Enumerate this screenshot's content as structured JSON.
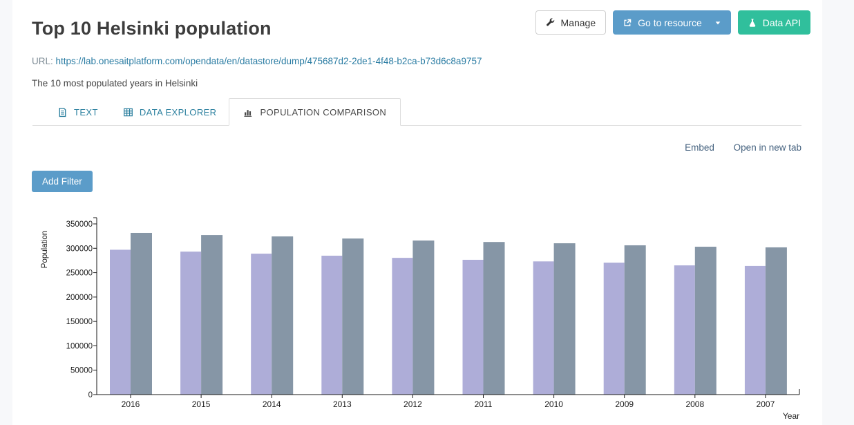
{
  "page": {
    "title": "Top 10 Helsinki population",
    "url_label": "URL:",
    "url": "https://lab.onesaitplatform.com/opendata/en/datastore/dump/475687d2-2de1-4f48-b2ca-b73d6c8a9757",
    "description": "The 10 most populated years in Helsinki"
  },
  "toolbar": {
    "manage_label": "Manage",
    "go_to_resource_label": "Go to resource",
    "data_api_label": "Data API"
  },
  "tabs": [
    {
      "label": "TEXT",
      "icon": "document-icon",
      "active": false
    },
    {
      "label": "DATA EXPLORER",
      "icon": "table-icon",
      "active": false
    },
    {
      "label": "POPULATION COMPARISON",
      "icon": "bar-chart-icon",
      "active": true
    }
  ],
  "view_links": {
    "embed": "Embed",
    "open_new_tab": "Open in new tab"
  },
  "filter": {
    "add_filter_label": "Add Filter"
  },
  "chart_data": {
    "type": "bar",
    "categories": [
      "2016",
      "2015",
      "2014",
      "2013",
      "2012",
      "2011",
      "2010",
      "2009",
      "2008",
      "2007"
    ],
    "series": [
      {
        "name": "purple",
        "color": "#aeadd8",
        "values": [
          297000,
          293200,
          289000,
          284800,
          280400,
          276400,
          273100,
          270600,
          265000,
          263700
        ]
      },
      {
        "name": "gray",
        "color": "#8696a6",
        "values": [
          331600,
          327200,
          324300,
          320000,
          315900,
          312900,
          310300,
          306100,
          303200,
          301900
        ]
      }
    ],
    "title": "",
    "xlabel": "Year",
    "ylabel": "Population",
    "ylim": [
      0,
      350000
    ],
    "ytick_step": 50000,
    "ytick_labels": [
      "0",
      "50000",
      "100000",
      "150000",
      "200000",
      "250000",
      "300000",
      "350000"
    ],
    "legend": "none",
    "grid": false
  },
  "colors": {
    "page_background": "#f7f8fa",
    "content_background": "#ffffff",
    "primary_blue": "#5b9cc9",
    "success_green": "#30bf9c",
    "tab_link": "#2a7f9e",
    "view_link": "#45627f",
    "url_link": "#2a7ca3",
    "axis_text": "#1a1a1a"
  }
}
